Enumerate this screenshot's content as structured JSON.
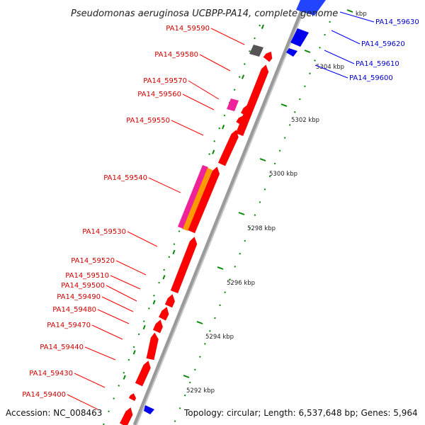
{
  "title": "Pseudomonas aeruginosa UCBPP-PA14, complete genome",
  "accession": "Accession: NC_008463",
  "topology": "Topology: circular; Length: 6,537,648 bp; Genes: 5,964",
  "colors": {
    "minus_strand": "#ff0000",
    "plus_strand": "#0000ff",
    "pseudo": "#555555",
    "rna_magenta": "#ee2299",
    "orange": "#ff9900",
    "backbone": "#999999",
    "tick": "#008800"
  },
  "position_ticks": [
    "5292 kbp",
    "5294 kbp",
    "5296 kbp",
    "5298 kbp",
    "5300 kbp",
    "5302 kbp",
    "5304 kbp",
    "kbp"
  ],
  "left_genes": [
    "PA14_59590",
    "PA14_59580",
    "PA14_59570",
    "PA14_59560",
    "PA14_59550",
    "PA14_59540",
    "PA14_59530",
    "PA14_59520",
    "PA14_59510",
    "PA14_59500",
    "PA14_59490",
    "PA14_59480",
    "PA14_59470",
    "PA14_59440",
    "PA14_59430",
    "PA14_59400"
  ],
  "right_genes": [
    "PA14_59630",
    "PA14_59620",
    "PA14_59610",
    "PA14_59600"
  ]
}
